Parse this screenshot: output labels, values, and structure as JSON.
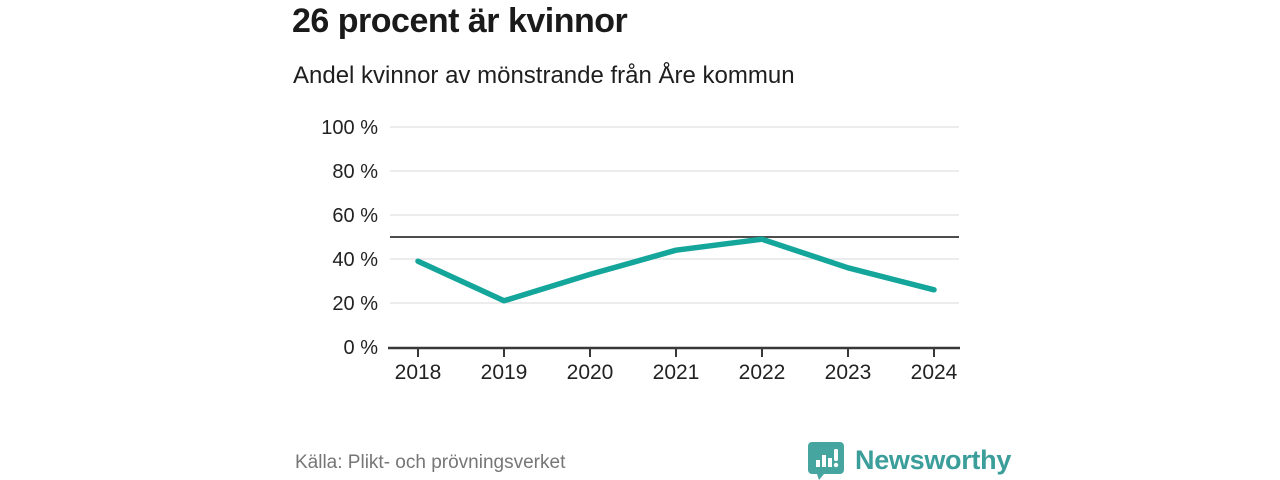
{
  "header": {
    "title": "26 procent är kvinnor",
    "subtitle": "Andel kvinnor av mönstrande från Åre kommun"
  },
  "chart_data": {
    "type": "line",
    "x": [
      "2018",
      "2019",
      "2020",
      "2021",
      "2022",
      "2023",
      "2024"
    ],
    "series": [
      {
        "name": "Andel kvinnor av mönstrande",
        "values": [
          39,
          21,
          33,
          44,
          49,
          36,
          26
        ]
      }
    ],
    "title": "26 procent är kvinnor",
    "subtitle": "Andel kvinnor av mönstrande från Åre kommun",
    "xlabel": "",
    "ylabel": "",
    "ylim": [
      0,
      100
    ],
    "y_ticks": [
      0,
      20,
      40,
      60,
      80,
      100
    ],
    "y_tick_suffix": " %",
    "reference_line": 50,
    "grid": true,
    "legend_position": "none",
    "line_color": "#14a59b"
  },
  "footer": {
    "source": "Källa: Plikt- och prövningsverket",
    "brand_name": "Newsworthy"
  },
  "colors": {
    "background": "#ffffff",
    "title_text": "#1a1a1a",
    "axis_text": "#222222",
    "grid_line": "#d8d8d8",
    "reference_line": "#4d4d4d",
    "axis_line": "#383838",
    "source_text": "#767676",
    "brand_teal": "#3b9e9b",
    "logo_bubble": "#46a69f"
  }
}
